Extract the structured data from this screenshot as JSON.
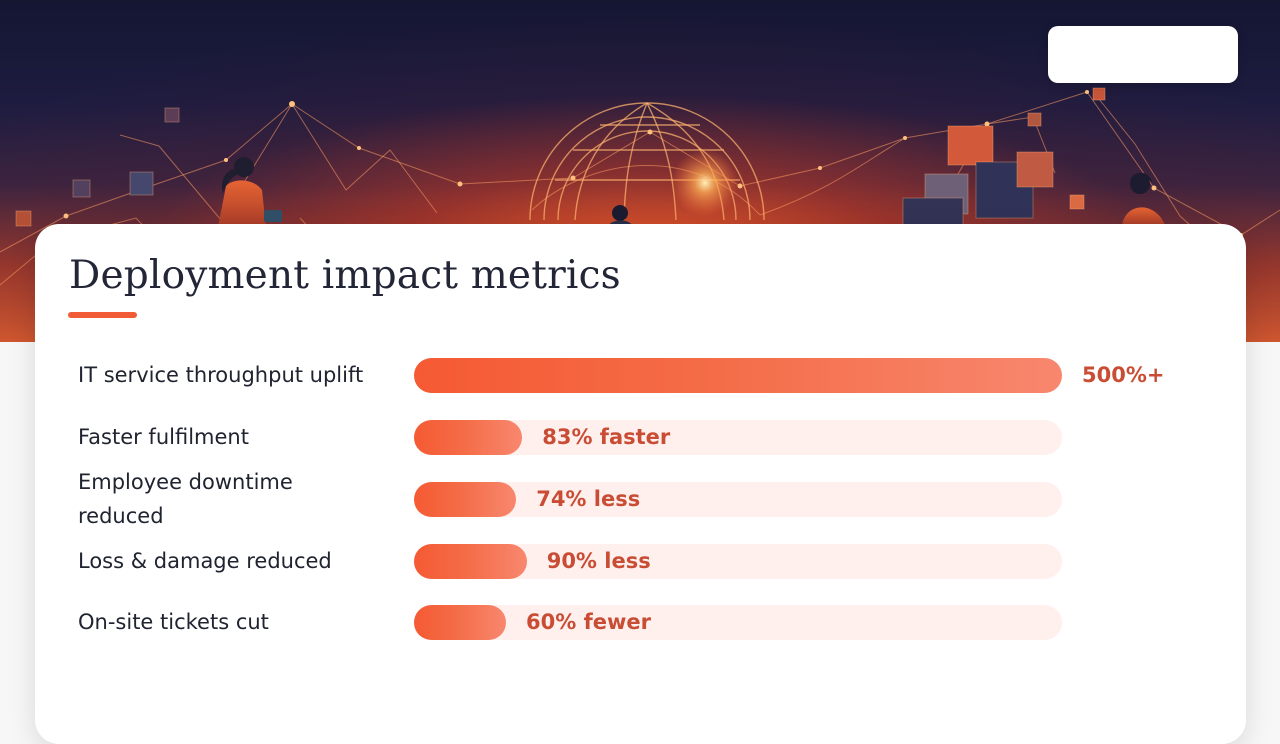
{
  "slide": {
    "title": "Deployment impact metrics"
  },
  "colors": {
    "accent": "#f15b36",
    "bar_fill_start": "#f55a33",
    "bar_fill_end": "#f8876e",
    "bar_track": "#fff0ed",
    "value_text": "#c94d35",
    "title_text": "#222636",
    "label_text": "#202431"
  },
  "chart_data": {
    "type": "bar",
    "orientation": "horizontal",
    "title": "Deployment impact metrics",
    "categories": [
      "IT service throughput uplift",
      "Faster fulfilment",
      "Employee downtime reduced",
      "Loss & damage reduced",
      "On-site tickets cut"
    ],
    "series": [
      {
        "values": [
          500,
          83,
          74,
          90,
          60
        ],
        "labels": [
          "500%+",
          "83% faster",
          "74% less",
          "90% less",
          "60% fewer"
        ]
      }
    ],
    "xlim": [
      0,
      500
    ],
    "grid": false,
    "legend": false
  }
}
